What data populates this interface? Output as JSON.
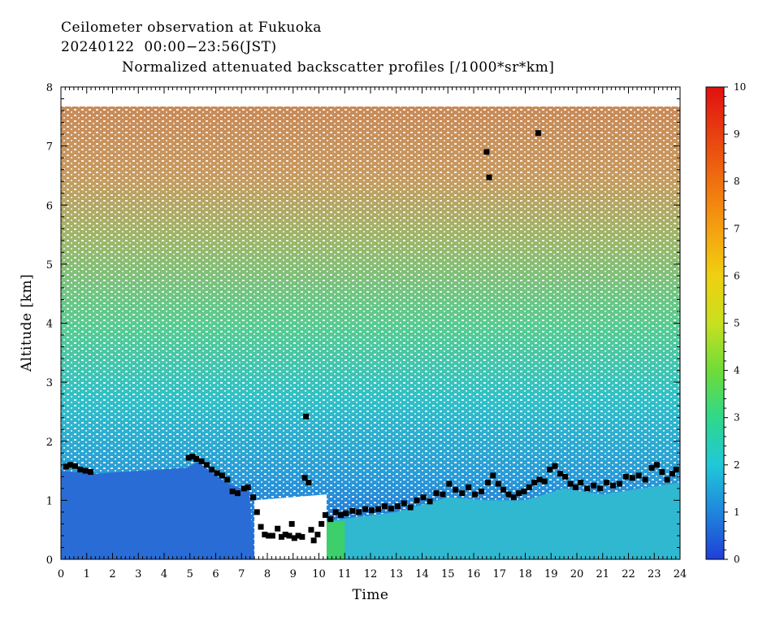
{
  "header": {
    "line1": "Ceilometer observation at Fukuoka",
    "line2": "20240122  00:00−23:56(JST)",
    "line3": "Normalized attenuated backscatter profiles [/1000*sr*km]"
  },
  "chart_data": {
    "type": "heatmap",
    "xlabel": "Time",
    "ylabel": "Altitude [km]",
    "xlim": [
      0,
      24
    ],
    "ylim": [
      0,
      8
    ],
    "x_ticks": [
      "0",
      "1",
      "2",
      "3",
      "4",
      "5",
      "6",
      "7",
      "8",
      "9",
      "10",
      "11",
      "12",
      "13",
      "14",
      "15",
      "16",
      "17",
      "18",
      "19",
      "20",
      "21",
      "22",
      "23",
      "24"
    ],
    "y_ticks": [
      "0",
      "1",
      "2",
      "3",
      "4",
      "5",
      "6",
      "7",
      "8"
    ],
    "data_top_altitude": 7.67,
    "colorbar": {
      "range": [
        0,
        10
      ],
      "ticks": [
        "0",
        "1",
        "2",
        "3",
        "4",
        "5",
        "6",
        "7",
        "8",
        "9",
        "10"
      ],
      "colors": [
        "#1f3fd8",
        "#1f86dc",
        "#20c8d8",
        "#2fd88a",
        "#6fdc38",
        "#c8e020",
        "#f0d010",
        "#f5a010",
        "#f07010",
        "#e84010",
        "#e01010"
      ]
    },
    "cloud_base_points": [
      [
        0.2,
        1.57
      ],
      [
        0.35,
        1.6
      ],
      [
        0.55,
        1.58
      ],
      [
        0.75,
        1.52
      ],
      [
        0.95,
        1.5
      ],
      [
        1.15,
        1.48
      ],
      [
        4.95,
        1.72
      ],
      [
        5.1,
        1.74
      ],
      [
        5.25,
        1.7
      ],
      [
        5.45,
        1.66
      ],
      [
        5.65,
        1.6
      ],
      [
        5.85,
        1.52
      ],
      [
        6.05,
        1.46
      ],
      [
        6.25,
        1.42
      ],
      [
        6.45,
        1.35
      ],
      [
        6.65,
        1.15
      ],
      [
        6.85,
        1.12
      ],
      [
        7.1,
        1.2
      ],
      [
        7.25,
        1.22
      ],
      [
        7.45,
        1.05
      ],
      [
        7.6,
        0.8
      ],
      [
        7.75,
        0.55
      ],
      [
        7.9,
        0.42
      ],
      [
        8.05,
        0.4
      ],
      [
        8.2,
        0.4
      ],
      [
        8.4,
        0.52
      ],
      [
        8.55,
        0.38
      ],
      [
        8.7,
        0.42
      ],
      [
        8.85,
        0.4
      ],
      [
        8.95,
        0.6
      ],
      [
        9.05,
        0.36
      ],
      [
        9.2,
        0.4
      ],
      [
        9.35,
        0.38
      ],
      [
        9.45,
        1.38
      ],
      [
        9.6,
        1.3
      ],
      [
        9.7,
        0.5
      ],
      [
        9.8,
        0.32
      ],
      [
        9.95,
        0.42
      ],
      [
        10.1,
        0.6
      ],
      [
        10.25,
        0.75
      ],
      [
        10.45,
        0.68
      ],
      [
        10.65,
        0.8
      ],
      [
        10.85,
        0.75
      ],
      [
        11.05,
        0.78
      ],
      [
        11.3,
        0.82
      ],
      [
        11.55,
        0.8
      ],
      [
        11.8,
        0.85
      ],
      [
        12.05,
        0.83
      ],
      [
        12.3,
        0.85
      ],
      [
        12.55,
        0.9
      ],
      [
        12.8,
        0.86
      ],
      [
        13.05,
        0.9
      ],
      [
        13.3,
        0.95
      ],
      [
        13.55,
        0.88
      ],
      [
        13.8,
        1.0
      ],
      [
        14.05,
        1.05
      ],
      [
        14.3,
        0.98
      ],
      [
        14.55,
        1.12
      ],
      [
        14.8,
        1.1
      ],
      [
        15.05,
        1.28
      ],
      [
        15.3,
        1.18
      ],
      [
        15.55,
        1.12
      ],
      [
        15.8,
        1.22
      ],
      [
        16.05,
        1.1
      ],
      [
        16.3,
        1.15
      ],
      [
        16.55,
        1.3
      ],
      [
        16.75,
        1.42
      ],
      [
        16.95,
        1.28
      ],
      [
        17.15,
        1.18
      ],
      [
        17.35,
        1.1
      ],
      [
        17.55,
        1.05
      ],
      [
        17.75,
        1.12
      ],
      [
        17.95,
        1.15
      ],
      [
        18.15,
        1.22
      ],
      [
        18.35,
        1.3
      ],
      [
        18.55,
        1.35
      ],
      [
        18.75,
        1.32
      ],
      [
        18.95,
        1.52
      ],
      [
        19.15,
        1.58
      ],
      [
        19.35,
        1.45
      ],
      [
        19.55,
        1.4
      ],
      [
        19.75,
        1.28
      ],
      [
        19.95,
        1.22
      ],
      [
        20.15,
        1.3
      ],
      [
        20.4,
        1.2
      ],
      [
        20.65,
        1.25
      ],
      [
        20.9,
        1.2
      ],
      [
        21.15,
        1.3
      ],
      [
        21.4,
        1.25
      ],
      [
        21.65,
        1.28
      ],
      [
        21.9,
        1.4
      ],
      [
        22.15,
        1.38
      ],
      [
        22.4,
        1.42
      ],
      [
        22.65,
        1.35
      ],
      [
        22.9,
        1.55
      ],
      [
        23.1,
        1.6
      ],
      [
        23.3,
        1.48
      ],
      [
        23.5,
        1.35
      ],
      [
        23.7,
        1.45
      ],
      [
        23.85,
        1.52
      ],
      [
        9.5,
        2.42
      ],
      [
        16.5,
        6.9
      ],
      [
        16.6,
        6.47
      ],
      [
        18.5,
        7.22
      ]
    ]
  }
}
